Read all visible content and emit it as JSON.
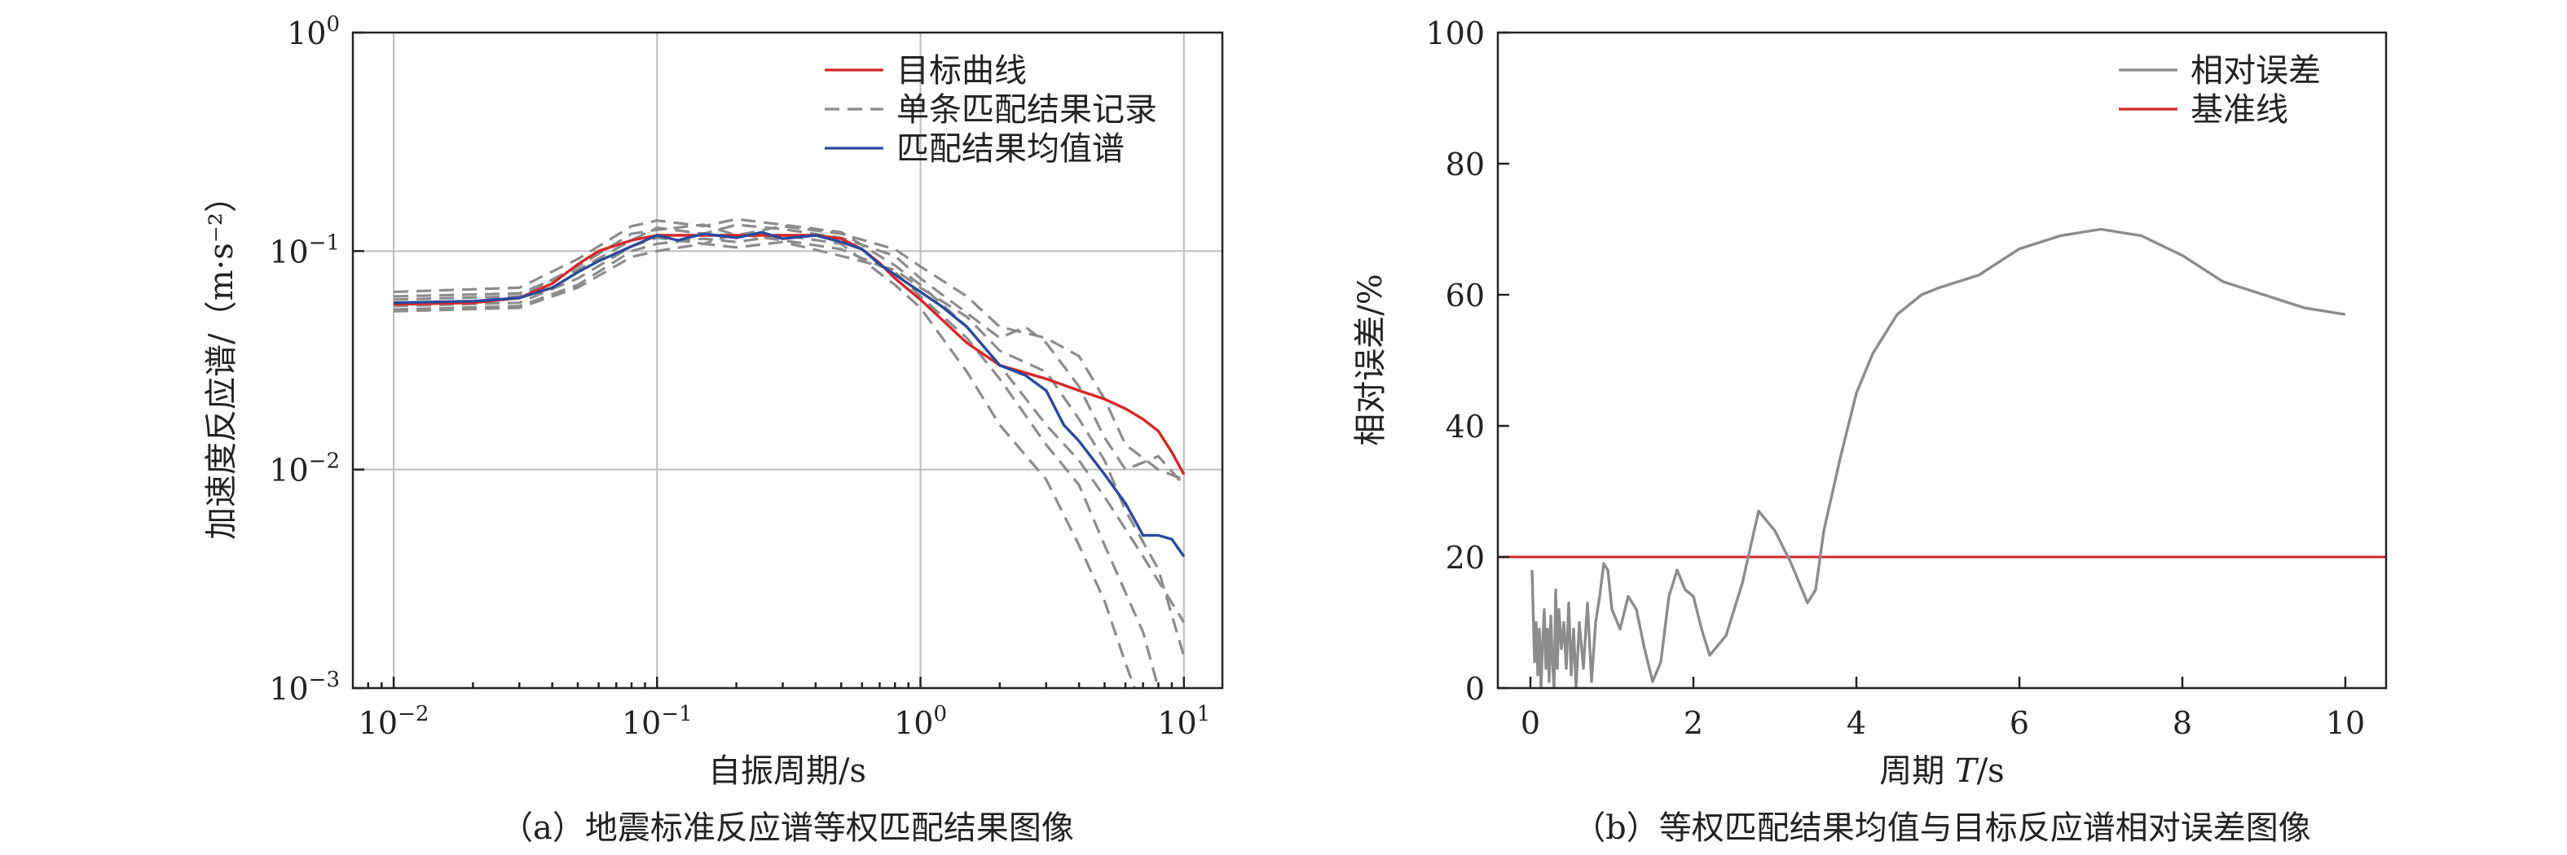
{
  "chart_data": [
    {
      "type": "line",
      "caption": "（a）地震标准反应谱等权匹配结果图像",
      "xlabel": "自振周期/s",
      "ylabel": "加速度反应谱/（m·s⁻²）",
      "xscale": "log",
      "yscale": "log",
      "xlim": [
        0.007,
        14
      ],
      "ylim": [
        0.001,
        1
      ],
      "x_ticks": [
        {
          "value": 0.01,
          "base": "10",
          "exp": "−2"
        },
        {
          "value": 0.1,
          "base": "10",
          "exp": "−1"
        },
        {
          "value": 1,
          "base": "10",
          "exp": "0"
        },
        {
          "value": 10,
          "base": "10",
          "exp": "1"
        }
      ],
      "y_ticks": [
        {
          "value": 0.001,
          "base": "10",
          "exp": "−3"
        },
        {
          "value": 0.01,
          "base": "10",
          "exp": "−2"
        },
        {
          "value": 0.1,
          "base": "10",
          "exp": "−1"
        },
        {
          "value": 1,
          "base": "10",
          "exp": "0"
        }
      ],
      "grid": true,
      "legend_position": "top-right",
      "series": [
        {
          "name": "目标曲线",
          "color": "#d62728",
          "style": "solid",
          "points": [
            [
              0.01,
              0.057
            ],
            [
              0.02,
              0.058
            ],
            [
              0.03,
              0.061
            ],
            [
              0.04,
              0.071
            ],
            [
              0.05,
              0.087
            ],
            [
              0.06,
              0.1
            ],
            [
              0.08,
              0.112
            ],
            [
              0.1,
              0.118
            ],
            [
              0.2,
              0.118
            ],
            [
              0.4,
              0.118
            ],
            [
              0.5,
              0.114
            ],
            [
              0.6,
              0.102
            ],
            [
              0.7,
              0.088
            ],
            [
              0.8,
              0.075
            ],
            [
              1,
              0.06
            ],
            [
              1.5,
              0.038
            ],
            [
              2,
              0.03
            ],
            [
              3,
              0.026
            ],
            [
              4,
              0.023
            ],
            [
              5,
              0.021
            ],
            [
              6,
              0.019
            ],
            [
              7,
              0.017
            ],
            [
              8,
              0.015
            ],
            [
              9,
              0.012
            ],
            [
              10,
              0.0095
            ]
          ]
        },
        {
          "name": "单条匹配结果记录",
          "color": "#8c8c8c",
          "style": "dashed",
          "records": [
            [
              [
                0.01,
                0.065
              ],
              [
                0.03,
                0.068
              ],
              [
                0.05,
                0.092
              ],
              [
                0.08,
                0.13
              ],
              [
                0.1,
                0.138
              ],
              [
                0.15,
                0.13
              ],
              [
                0.2,
                0.14
              ],
              [
                0.3,
                0.132
              ],
              [
                0.5,
                0.122
              ],
              [
                0.8,
                0.086
              ],
              [
                1,
                0.07
              ],
              [
                1.5,
                0.045
              ],
              [
                2,
                0.03
              ],
              [
                3,
                0.016
              ],
              [
                4,
                0.011
              ],
              [
                5,
                0.0075
              ],
              [
                7,
                0.004
              ],
              [
                10,
                0.002
              ]
            ],
            [
              [
                0.01,
                0.062
              ],
              [
                0.03,
                0.064
              ],
              [
                0.05,
                0.082
              ],
              [
                0.08,
                0.112
              ],
              [
                0.1,
                0.128
              ],
              [
                0.15,
                0.12
              ],
              [
                0.2,
                0.132
              ],
              [
                0.3,
                0.126
              ],
              [
                0.5,
                0.115
              ],
              [
                0.8,
                0.095
              ],
              [
                1,
                0.075
              ],
              [
                1.5,
                0.052
              ],
              [
                2,
                0.04
              ],
              [
                2.5,
                0.045
              ],
              [
                3,
                0.038
              ],
              [
                4,
                0.024
              ],
              [
                5,
                0.014
              ],
              [
                6,
                0.01
              ],
              [
                8,
                0.0115
              ],
              [
                10,
                0.0085
              ]
            ],
            [
              [
                0.01,
                0.056
              ],
              [
                0.03,
                0.058
              ],
              [
                0.05,
                0.075
              ],
              [
                0.08,
                0.105
              ],
              [
                0.1,
                0.115
              ],
              [
                0.15,
                0.108
              ],
              [
                0.2,
                0.12
              ],
              [
                0.3,
                0.112
              ],
              [
                0.5,
                0.102
              ],
              [
                0.8,
                0.08
              ],
              [
                1,
                0.062
              ],
              [
                1.5,
                0.04
              ],
              [
                2,
                0.026
              ],
              [
                3,
                0.013
              ],
              [
                4,
                0.0085
              ],
              [
                5,
                0.0045
              ],
              [
                7,
                0.0018
              ],
              [
                8,
                0.001
              ]
            ],
            [
              [
                0.01,
                0.054
              ],
              [
                0.03,
                0.056
              ],
              [
                0.05,
                0.07
              ],
              [
                0.08,
                0.1
              ],
              [
                0.1,
                0.108
              ],
              [
                0.15,
                0.114
              ],
              [
                0.2,
                0.11
              ],
              [
                0.3,
                0.118
              ],
              [
                0.5,
                0.108
              ],
              [
                0.8,
                0.07
              ],
              [
                1,
                0.055
              ],
              [
                1.5,
                0.028
              ],
              [
                2,
                0.016
              ],
              [
                3,
                0.009
              ],
              [
                4,
                0.0045
              ],
              [
                5,
                0.0025
              ],
              [
                6,
                0.0013
              ],
              [
                6.5,
                0.001
              ]
            ],
            [
              [
                0.01,
                0.053
              ],
              [
                0.03,
                0.055
              ],
              [
                0.05,
                0.068
              ],
              [
                0.08,
                0.094
              ],
              [
                0.1,
                0.1
              ],
              [
                0.15,
                0.108
              ],
              [
                0.2,
                0.104
              ],
              [
                0.3,
                0.11
              ],
              [
                0.5,
                0.095
              ],
              [
                0.8,
                0.082
              ],
              [
                1,
                0.068
              ],
              [
                1.5,
                0.05
              ],
              [
                2,
                0.035
              ],
              [
                3,
                0.028
              ],
              [
                4,
                0.017
              ],
              [
                5,
                0.011
              ],
              [
                6,
                0.0065
              ],
              [
                8,
                0.0035
              ],
              [
                10,
                0.0014
              ]
            ],
            [
              [
                0.01,
                0.06
              ],
              [
                0.03,
                0.062
              ],
              [
                0.05,
                0.085
              ],
              [
                0.08,
                0.12
              ],
              [
                0.1,
                0.125
              ],
              [
                0.15,
                0.132
              ],
              [
                0.2,
                0.118
              ],
              [
                0.3,
                0.13
              ],
              [
                0.5,
                0.12
              ],
              [
                0.8,
                0.102
              ],
              [
                1,
                0.085
              ],
              [
                1.5,
                0.062
              ],
              [
                2,
                0.045
              ],
              [
                3,
                0.04
              ],
              [
                4,
                0.033
              ],
              [
                5,
                0.021
              ],
              [
                6,
                0.013
              ],
              [
                8,
                0.01
              ],
              [
                10,
                0.009
              ]
            ]
          ]
        },
        {
          "name": "匹配结果均值谱",
          "color": "#2a4a9a",
          "style": "solid",
          "points": [
            [
              0.01,
              0.058
            ],
            [
              0.02,
              0.059
            ],
            [
              0.03,
              0.061
            ],
            [
              0.04,
              0.068
            ],
            [
              0.05,
              0.08
            ],
            [
              0.06,
              0.09
            ],
            [
              0.08,
              0.105
            ],
            [
              0.1,
              0.118
            ],
            [
              0.12,
              0.112
            ],
            [
              0.15,
              0.12
            ],
            [
              0.2,
              0.115
            ],
            [
              0.25,
              0.122
            ],
            [
              0.3,
              0.114
            ],
            [
              0.4,
              0.118
            ],
            [
              0.5,
              0.11
            ],
            [
              0.6,
              0.102
            ],
            [
              0.7,
              0.087
            ],
            [
              0.8,
              0.078
            ],
            [
              1,
              0.065
            ],
            [
              1.2,
              0.056
            ],
            [
              1.5,
              0.045
            ],
            [
              2,
              0.03
            ],
            [
              2.5,
              0.027
            ],
            [
              3,
              0.023
            ],
            [
              3.5,
              0.016
            ],
            [
              4,
              0.0135
            ],
            [
              5,
              0.0095
            ],
            [
              6,
              0.007
            ],
            [
              7,
              0.005
            ],
            [
              8,
              0.005
            ],
            [
              9,
              0.0048
            ],
            [
              10,
              0.004
            ]
          ]
        }
      ]
    },
    {
      "type": "line",
      "caption": "（b）等权匹配结果均值与目标反应谱相对误差图像",
      "xlabel_prefix": "周期 ",
      "xlabel_var": "T",
      "xlabel_suffix": "/s",
      "ylabel": "相对误差/%",
      "xlim": [
        -0.4,
        10.5
      ],
      "ylim": [
        0,
        100
      ],
      "x_ticks": [
        0,
        2,
        4,
        6,
        8,
        10
      ],
      "y_ticks": [
        0,
        20,
        40,
        60,
        80,
        100
      ],
      "grid": false,
      "legend_position": "top-right",
      "series": [
        {
          "name": "相对误差",
          "color": "#8c8c8c",
          "style": "solid",
          "x": [
            0.02,
            0.05,
            0.07,
            0.09,
            0.11,
            0.13,
            0.15,
            0.17,
            0.19,
            0.21,
            0.23,
            0.25,
            0.27,
            0.29,
            0.31,
            0.33,
            0.35,
            0.38,
            0.41,
            0.44,
            0.47,
            0.5,
            0.53,
            0.56,
            0.6,
            0.65,
            0.7,
            0.75,
            0.8,
            0.85,
            0.9,
            0.95,
            1.0,
            1.1,
            1.2,
            1.3,
            1.4,
            1.5,
            1.6,
            1.7,
            1.8,
            1.9,
            2.0,
            2.1,
            2.2,
            2.4,
            2.6,
            2.8,
            3.0,
            3.2,
            3.4,
            3.5,
            3.6,
            3.8,
            4.0,
            4.2,
            4.5,
            4.8,
            5.0,
            5.5,
            6.0,
            6.5,
            7.0,
            7.5,
            8.0,
            8.5,
            9.0,
            9.5,
            10.0
          ],
          "y": [
            18,
            4,
            10,
            2,
            9,
            0,
            7,
            12,
            3,
            9,
            1,
            11,
            4,
            0,
            15,
            3,
            12,
            6,
            10,
            3,
            13,
            2,
            9,
            0,
            10,
            3,
            13,
            1,
            10,
            14,
            19,
            18,
            12,
            9,
            14,
            12,
            6,
            1,
            4,
            14,
            18,
            15,
            14,
            9,
            5,
            8,
            16,
            27,
            24,
            19,
            13,
            15,
            24,
            35,
            45,
            51,
            57,
            60,
            61,
            63,
            67,
            69,
            70,
            69,
            66,
            62,
            60,
            58,
            57
          ]
        },
        {
          "name": "基准线",
          "color": "#d62728",
          "style": "solid",
          "y_constant": 20
        }
      ]
    }
  ]
}
